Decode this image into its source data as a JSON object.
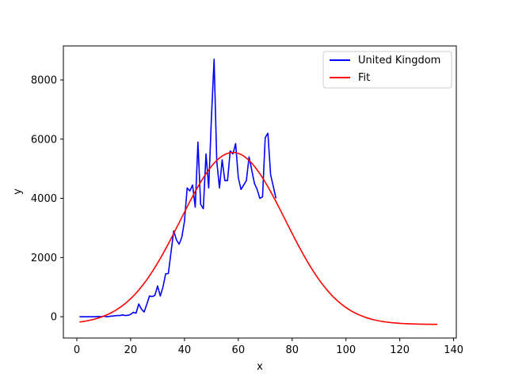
{
  "chart_data": {
    "type": "line",
    "title": "",
    "xlabel": "x",
    "ylabel": "y",
    "xlim": [
      -5,
      141
    ],
    "ylim": [
      -720,
      9150
    ],
    "xticks": [
      0,
      20,
      40,
      60,
      80,
      100,
      120,
      140
    ],
    "yticks": [
      0,
      2000,
      4000,
      6000,
      8000
    ],
    "grid": false,
    "legend_position": "top-right",
    "series": [
      {
        "name": "United Kingdom",
        "color": "#0000ff",
        "x": [
          1,
          2,
          3,
          4,
          5,
          6,
          7,
          8,
          9,
          10,
          11,
          12,
          13,
          14,
          15,
          16,
          17,
          18,
          19,
          20,
          21,
          22,
          23,
          24,
          25,
          26,
          27,
          28,
          29,
          30,
          31,
          32,
          33,
          34,
          35,
          36,
          37,
          38,
          39,
          40,
          41,
          42,
          43,
          44,
          45,
          46,
          47,
          48,
          49,
          50,
          51,
          52,
          53,
          54,
          55,
          56,
          57,
          58,
          59,
          60,
          61,
          62,
          63,
          64,
          65,
          66,
          67,
          68,
          69,
          70,
          71,
          72,
          73,
          74
        ],
        "y": [
          0,
          0,
          0,
          0,
          0,
          0,
          0,
          10,
          0,
          20,
          0,
          10,
          20,
          30,
          40,
          40,
          60,
          40,
          50,
          80,
          150,
          120,
          430,
          260,
          160,
          420,
          700,
          680,
          720,
          1040,
          700,
          1000,
          1450,
          1460,
          2180,
          2900,
          2600,
          2450,
          2680,
          3230,
          4350,
          4250,
          4450,
          3700,
          5900,
          3800,
          3650,
          5500,
          4350,
          6700,
          8700,
          5250,
          4350,
          5300,
          4600,
          4600,
          5600,
          5500,
          5850,
          4700,
          4300,
          4450,
          4600,
          5400,
          4950,
          4500,
          4300,
          4000,
          4050,
          6050,
          6200,
          4800,
          4400,
          4000
        ]
      },
      {
        "name": "Fit",
        "color": "#ff0000",
        "fit": {
          "baseline": -260,
          "amplitude": 5810,
          "center": 58,
          "sigma": 19.5,
          "x_start": 1,
          "x_end": 134,
          "samples": 134
        }
      }
    ]
  }
}
